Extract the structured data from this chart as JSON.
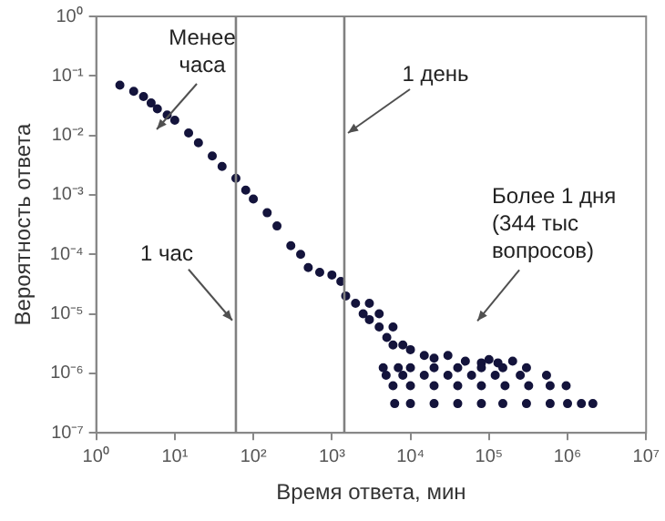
{
  "chart_data": {
    "type": "scatter",
    "xlabel": "Время ответа, мин",
    "ylabel": "Вероятность ответа",
    "log": "xy",
    "grid": false,
    "legend": false,
    "marker": "circle",
    "xlim": [
      1,
      10000000
    ],
    "ylim": [
      1e-07,
      1
    ],
    "xticks": [
      {
        "value": 1,
        "label": "10⁰"
      },
      {
        "value": 10,
        "label": "10¹"
      },
      {
        "value": 100,
        "label": "10²"
      },
      {
        "value": 1000,
        "label": "10³"
      },
      {
        "value": 10000,
        "label": "10⁴"
      },
      {
        "value": 100000,
        "label": "10⁵"
      },
      {
        "value": 1000000,
        "label": "10⁶"
      },
      {
        "value": 10000000,
        "label": "10⁷"
      }
    ],
    "yticks": [
      {
        "value": 1e-07,
        "label": "10⁻⁷"
      },
      {
        "value": 1e-06,
        "label": "10⁻⁶"
      },
      {
        "value": 1e-05,
        "label": "10⁻⁵"
      },
      {
        "value": 0.0001,
        "label": "10⁻⁴"
      },
      {
        "value": 0.001,
        "label": "10⁻³"
      },
      {
        "value": 0.01,
        "label": "10⁻²"
      },
      {
        "value": 0.1,
        "label": "10⁻¹"
      },
      {
        "value": 1,
        "label": "10⁰"
      }
    ],
    "series": [
      {
        "color": "#14143c",
        "x": [
          2,
          3,
          4,
          5,
          6,
          8,
          10,
          15,
          20,
          30,
          40,
          60,
          80,
          100,
          150,
          200,
          300,
          400,
          500,
          700,
          1000,
          1300,
          1500,
          2000,
          2500,
          3000,
          3000,
          4000,
          4000,
          5000,
          6000,
          6000,
          8000,
          10000,
          15000,
          20000,
          30000,
          50000,
          80000,
          100000,
          130000,
          200000,
          4500,
          7000,
          10000,
          20000,
          40000,
          80000,
          150000,
          300000,
          4900,
          8000,
          15000,
          30000,
          60000,
          120000,
          250000,
          540000,
          6000,
          10000,
          20000,
          40000,
          80000,
          160000,
          320000,
          600000,
          960000,
          6300,
          10000,
          20000,
          40000,
          80000,
          150000,
          300000,
          600000,
          1000000,
          1500000,
          2100000
        ],
        "values": [
          0.07,
          0.055,
          0.045,
          0.035,
          0.028,
          0.022,
          0.018,
          0.011,
          0.0075,
          0.0045,
          0.003,
          0.0019,
          0.0012,
          0.00085,
          0.0005,
          0.0003,
          0.00014,
          0.0001,
          6e-05,
          5e-05,
          4.5e-05,
          3.5e-05,
          2e-05,
          1.5e-05,
          1e-05,
          8e-06,
          1.5e-05,
          6e-06,
          1e-05,
          4e-06,
          3e-06,
          6e-06,
          3e-06,
          2.5e-06,
          2e-06,
          1.8e-06,
          2e-06,
          1.6e-06,
          1.5e-06,
          1.7e-06,
          1.5e-06,
          1.6e-06,
          1.24e-06,
          1.24e-06,
          1.24e-06,
          1.24e-06,
          1.24e-06,
          1.24e-06,
          1.24e-06,
          1.24e-06,
          9.3e-07,
          9.3e-07,
          9.3e-07,
          9.3e-07,
          9.3e-07,
          9.3e-07,
          9.3e-07,
          9.3e-07,
          6.2e-07,
          6.2e-07,
          6.2e-07,
          6.2e-07,
          6.2e-07,
          6.2e-07,
          6.2e-07,
          6.2e-07,
          6.2e-07,
          3.1e-07,
          3.1e-07,
          3.1e-07,
          3.1e-07,
          3.1e-07,
          3.1e-07,
          3.1e-07,
          3.1e-07,
          3.1e-07,
          3.1e-07,
          3.1e-07
        ]
      }
    ],
    "ref_lines": [
      {
        "axis": "x",
        "value": 60,
        "label": "1 час",
        "color": "#808080"
      },
      {
        "axis": "x",
        "value": 1440,
        "label": "1 день",
        "color": "#808080"
      }
    ],
    "annotations": [
      "Менее часа",
      "Более 1 дня (344 тыс вопросов)"
    ]
  }
}
